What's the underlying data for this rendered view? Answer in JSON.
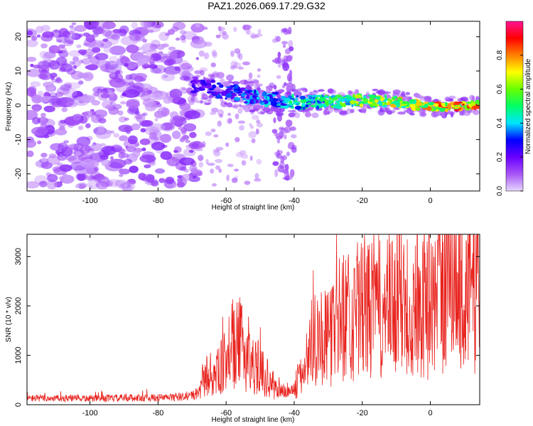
{
  "title": "PAZ1.2026.069.17.29.G32",
  "chart_data": [
    {
      "type": "heatmap",
      "xlabel": "Height of straight line (km)",
      "ylabel": "Frequency (Hz)",
      "xlim": [
        -118.5,
        14.5
      ],
      "ylim": [
        -25,
        24.5
      ],
      "xticks": [
        -100,
        -80,
        -60,
        -40,
        -20,
        0
      ],
      "yticks": [
        20,
        10,
        0,
        -10,
        -20
      ],
      "colorbar": {
        "label": "Normalized spectral amplitude",
        "range": [
          0,
          1
        ],
        "ticks": [
          0.0,
          0.2,
          0.4,
          0.6,
          0.8
        ],
        "colors": [
          "#e6d7ff",
          "#a855f7",
          "#6a00ff",
          "#0000ff",
          "#00e5ff",
          "#00ff66",
          "#66ff00",
          "#ffff00",
          "#ff8000",
          "#ff0000",
          "#ff1493"
        ]
      },
      "features": [
        {
          "name": "diffuse noise",
          "x_range": [
            -118,
            -68
          ],
          "freq_range": [
            -24,
            24
          ],
          "amplitude": 0.1
        },
        {
          "name": "main signal ridge",
          "points": [
            [
              -70,
              6
            ],
            [
              -60,
              4
            ],
            [
              -50,
              2
            ],
            [
              -40,
              1
            ],
            [
              -30,
              1
            ],
            [
              -20,
              1.5
            ],
            [
              -10,
              1
            ],
            [
              0,
              -0.5
            ],
            [
              10,
              -0.2
            ],
            [
              14,
              0
            ]
          ],
          "amplitude_start": 0.25,
          "amplitude_end": 0.95
        },
        {
          "name": "secondary streak",
          "x_range": [
            -46,
            -40
          ],
          "freq_range": [
            -22,
            22
          ],
          "amplitude": 0.08
        }
      ]
    },
    {
      "type": "line",
      "xlabel": "Height of straight line (km)",
      "ylabel": "SNR (10 * v/v)",
      "xlim": [
        -118.5,
        14.5
      ],
      "ylim": [
        0,
        3450
      ],
      "xticks": [
        -100,
        -80,
        -60,
        -40,
        -20,
        0
      ],
      "yticks": [
        0,
        1000,
        2000,
        3000
      ],
      "color": "#e8231e",
      "series": [
        {
          "name": "SNR",
          "x": [
            -118,
            -110,
            -100,
            -90,
            -80,
            -72,
            -68,
            -66,
            -64,
            -62,
            -60,
            -58,
            -56,
            -54,
            -52,
            -50,
            -48,
            -46,
            -44,
            -42,
            -40,
            -38,
            -36,
            -34,
            -32,
            -30,
            -28,
            -26,
            -24,
            -22,
            -20,
            -18,
            -16,
            -14,
            -12,
            -10,
            -8,
            -6,
            -4,
            -2,
            0,
            2,
            4,
            6,
            8,
            10,
            12,
            14
          ],
          "values": [
            130,
            130,
            125,
            135,
            140,
            160,
            220,
            600,
            520,
            700,
            900,
            1100,
            1250,
            1000,
            800,
            700,
            550,
            350,
            280,
            260,
            300,
            550,
            1000,
            1500,
            1400,
            1300,
            1600,
            1800,
            1900,
            1700,
            2000,
            1900,
            2100,
            1800,
            2000,
            1900,
            2200,
            1900,
            2000,
            2100,
            1900,
            2300,
            2200,
            2700,
            2400,
            2500,
            2300,
            2600
          ]
        }
      ]
    }
  ]
}
